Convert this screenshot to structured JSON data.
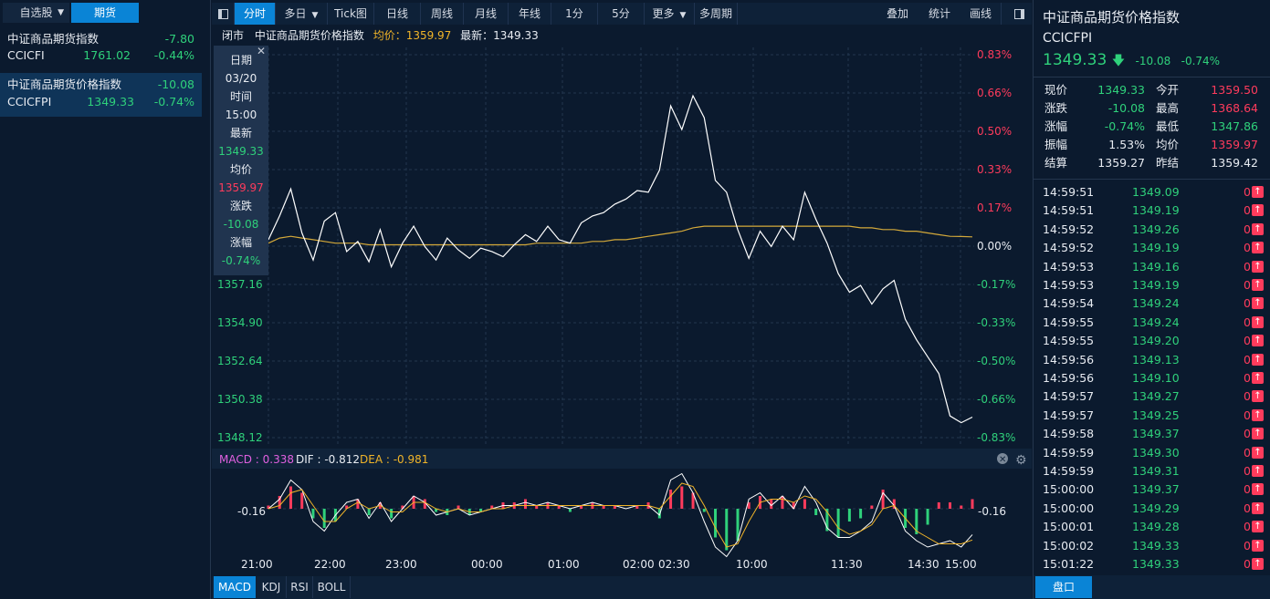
{
  "left": {
    "tab_watchlist": "自选股",
    "tab_futures": "期货",
    "items": [
      {
        "name": "中证商品期货指数",
        "change": "-7.80",
        "code": "CCICFI",
        "price": "1761.02",
        "pct": "-0.44%"
      },
      {
        "name": "中证商品期货价格指数",
        "change": "-10.08",
        "code": "CCICFPI",
        "price": "1349.33",
        "pct": "-0.74%"
      }
    ]
  },
  "toolbar": {
    "buttons": [
      "分时",
      "多日",
      "Tick图",
      "日线",
      "周线",
      "月线",
      "年线",
      "1分",
      "5分",
      "更多",
      "多周期"
    ],
    "right_buttons": [
      "叠加",
      "统计",
      "画线"
    ]
  },
  "header": {
    "status": "闭市",
    "name": "中证商品期货价格指数",
    "avg_label": "均价：1359.97",
    "last_label": "最新：1349.33"
  },
  "tooltip": {
    "rows": [
      {
        "label": "日期",
        "value": "03/20",
        "color": "white"
      },
      {
        "label": "时间",
        "value": "15:00",
        "color": "white"
      },
      {
        "label": "最新",
        "value": "1349.33",
        "color": "down"
      },
      {
        "label": "均价",
        "value": "1359.97",
        "color": "up"
      },
      {
        "label": "涨跌",
        "value": "-10.08",
        "color": "down"
      },
      {
        "label": "涨幅",
        "value": "-0.74%",
        "color": "down"
      }
    ]
  },
  "chart_data": [
    {
      "type": "line",
      "y_left_ticks": [
        "1357.16",
        "1354.90",
        "1352.64",
        "1350.38",
        "1348.12"
      ],
      "y_right_ticks": [
        "0.83%",
        "0.66%",
        "0.50%",
        "0.33%",
        "0.17%",
        "0.00%",
        "-0.17%",
        "-0.33%",
        "-0.50%",
        "-0.66%",
        "-0.83%"
      ],
      "x_ticks": [
        "21:00",
        "22:00",
        "23:00",
        "00:00",
        "01:00",
        "02:00",
        "02:30",
        "10:00",
        "11:30",
        "14:30",
        "15:00"
      ],
      "ylim": [
        1348.12,
        1370.72
      ],
      "series": [
        {
          "name": "最新",
          "values": [
            1359.8,
            1361.2,
            1362.8,
            1360.2,
            1358.6,
            1360.9,
            1361.4,
            1359.1,
            1359.7,
            1358.5,
            1360.4,
            1358.2,
            1359.6,
            1360.6,
            1359.4,
            1358.6,
            1359.9,
            1359.2,
            1358.7,
            1359.3,
            1359.1,
            1358.8,
            1359.5,
            1360.1,
            1359.7,
            1360.6,
            1359.8,
            1359.6,
            1360.8,
            1361.2,
            1361.4,
            1361.9,
            1362.2,
            1362.7,
            1362.6,
            1363.9,
            1367.7,
            1366.3,
            1368.3,
            1367.0,
            1363.3,
            1362.6,
            1360.4,
            1358.7,
            1360.3,
            1359.4,
            1360.6,
            1359.8,
            1362.6,
            1361.0,
            1359.6,
            1357.8,
            1356.7,
            1357.1,
            1356.0,
            1356.9,
            1357.4,
            1355.1,
            1353.9,
            1352.9,
            1351.9,
            1349.4,
            1349.0,
            1349.33
          ]
        },
        {
          "name": "均价",
          "values": [
            1359.6,
            1359.9,
            1360.0,
            1359.9,
            1359.8,
            1359.7,
            1359.6,
            1359.6,
            1359.6,
            1359.5,
            1359.5,
            1359.5,
            1359.5,
            1359.5,
            1359.5,
            1359.5,
            1359.5,
            1359.5,
            1359.5,
            1359.5,
            1359.5,
            1359.5,
            1359.5,
            1359.5,
            1359.6,
            1359.6,
            1359.6,
            1359.6,
            1359.6,
            1359.7,
            1359.7,
            1359.8,
            1359.8,
            1359.9,
            1360.0,
            1360.1,
            1360.2,
            1360.3,
            1360.5,
            1360.6,
            1360.6,
            1360.6,
            1360.6,
            1360.6,
            1360.6,
            1360.6,
            1360.6,
            1360.6,
            1360.6,
            1360.6,
            1360.6,
            1360.6,
            1360.6,
            1360.5,
            1360.5,
            1360.4,
            1360.4,
            1360.3,
            1360.3,
            1360.2,
            1360.1,
            1360.0,
            1359.99,
            1359.97
          ]
        }
      ]
    },
    {
      "type": "bar",
      "title": "MACD : 0.338",
      "dif_label": "DIF : -0.812",
      "dea_label": "DEA : -0.981",
      "y_tick_left": "-0.16",
      "y_tick_right": "-0.16",
      "ylim": [
        -1.6,
        1.2
      ],
      "histogram": [
        0.1,
        0.4,
        0.7,
        0.5,
        -0.3,
        -0.6,
        -0.4,
        0.1,
        0.3,
        -0.2,
        0.2,
        -0.3,
        0.1,
        0.4,
        0.3,
        -0.1,
        -0.2,
        0.1,
        -0.2,
        -0.1,
        0.1,
        0.2,
        0.2,
        0.3,
        0.1,
        0.2,
        0.1,
        -0.1,
        0.1,
        0.2,
        0.1,
        0.1,
        0.0,
        0.1,
        0.2,
        -0.3,
        0.6,
        0.7,
        0.5,
        -0.1,
        -0.9,
        -1.3,
        -1.0,
        0.2,
        0.4,
        0.3,
        0.4,
        0.2,
        0.3,
        -0.2,
        -0.7,
        -0.9,
        -0.4,
        -0.3,
        0.1,
        0.6,
        0.3,
        -0.6,
        -0.8,
        -0.5,
        0.2,
        0.2,
        0.1,
        0.3
      ],
      "dif": [
        0.0,
        0.3,
        0.9,
        0.6,
        -0.4,
        -0.7,
        -0.2,
        0.2,
        0.3,
        -0.3,
        0.2,
        -0.4,
        0.0,
        0.4,
        0.2,
        -0.2,
        -0.1,
        0.0,
        -0.2,
        -0.1,
        0.0,
        0.1,
        0.1,
        0.2,
        0.1,
        0.2,
        0.1,
        0.0,
        0.1,
        0.2,
        0.1,
        0.1,
        0.0,
        0.1,
        0.1,
        -0.2,
        0.9,
        1.1,
        0.5,
        -0.4,
        -1.2,
        -1.5,
        -1.0,
        0.3,
        0.5,
        0.1,
        0.4,
        0.0,
        0.7,
        0.2,
        -0.6,
        -0.9,
        -0.9,
        -0.7,
        -0.4,
        0.5,
        0.1,
        -0.7,
        -1.0,
        -1.2,
        -1.1,
        -1.0,
        -1.2,
        -0.812
      ],
      "dea": [
        0.0,
        0.1,
        0.5,
        0.6,
        0.1,
        -0.4,
        -0.4,
        0.0,
        0.2,
        0.0,
        0.1,
        -0.1,
        -0.1,
        0.2,
        0.2,
        0.0,
        -0.1,
        0.0,
        -0.1,
        -0.1,
        0.0,
        0.0,
        0.1,
        0.1,
        0.1,
        0.1,
        0.1,
        0.1,
        0.1,
        0.1,
        0.1,
        0.1,
        0.1,
        0.1,
        0.1,
        0.0,
        0.4,
        0.8,
        0.7,
        0.1,
        -0.6,
        -1.2,
        -1.1,
        -0.4,
        0.2,
        0.3,
        0.3,
        0.2,
        0.4,
        0.3,
        -0.1,
        -0.6,
        -0.8,
        -0.7,
        -0.5,
        0.0,
        0.1,
        -0.3,
        -0.7,
        -0.9,
        -1.1,
        -1.1,
        -1.1,
        -0.981
      ]
    }
  ],
  "indicator_tabs": [
    "MACD",
    "KDJ",
    "RSI",
    "BOLL"
  ],
  "quote": {
    "title": "中证商品期货价格指数",
    "code": "CCICFPI",
    "price": "1349.33",
    "change": "-10.08",
    "pct": "-0.74%",
    "rows": [
      {
        "l1": "现价",
        "v1": "1349.33",
        "c1": "down",
        "l2": "今开",
        "v2": "1359.50",
        "c2": "up"
      },
      {
        "l1": "涨跌",
        "v1": "-10.08",
        "c1": "down",
        "l2": "最高",
        "v2": "1368.64",
        "c2": "up"
      },
      {
        "l1": "涨幅",
        "v1": "-0.74%",
        "c1": "down",
        "l2": "最低",
        "v2": "1347.86",
        "c2": "down"
      },
      {
        "l1": "振幅",
        "v1": "1.53%",
        "c1": "white",
        "l2": "均价",
        "v2": "1359.97",
        "c2": "up"
      },
      {
        "l1": "结算",
        "v1": "1359.27",
        "c1": "white",
        "l2": "昨结",
        "v2": "1359.42",
        "c2": "white"
      }
    ]
  },
  "ticks": [
    {
      "t": "14:59:51",
      "p": "1349.09",
      "v": "0"
    },
    {
      "t": "14:59:51",
      "p": "1349.19",
      "v": "0"
    },
    {
      "t": "14:59:52",
      "p": "1349.26",
      "v": "0"
    },
    {
      "t": "14:59:52",
      "p": "1349.19",
      "v": "0"
    },
    {
      "t": "14:59:53",
      "p": "1349.16",
      "v": "0"
    },
    {
      "t": "14:59:53",
      "p": "1349.19",
      "v": "0"
    },
    {
      "t": "14:59:54",
      "p": "1349.24",
      "v": "0"
    },
    {
      "t": "14:59:55",
      "p": "1349.24",
      "v": "0"
    },
    {
      "t": "14:59:55",
      "p": "1349.20",
      "v": "0"
    },
    {
      "t": "14:59:56",
      "p": "1349.13",
      "v": "0"
    },
    {
      "t": "14:59:56",
      "p": "1349.10",
      "v": "0"
    },
    {
      "t": "14:59:57",
      "p": "1349.27",
      "v": "0"
    },
    {
      "t": "14:59:57",
      "p": "1349.25",
      "v": "0"
    },
    {
      "t": "14:59:58",
      "p": "1349.37",
      "v": "0"
    },
    {
      "t": "14:59:59",
      "p": "1349.30",
      "v": "0"
    },
    {
      "t": "14:59:59",
      "p": "1349.31",
      "v": "0"
    },
    {
      "t": "15:00:00",
      "p": "1349.37",
      "v": "0"
    },
    {
      "t": "15:00:00",
      "p": "1349.29",
      "v": "0"
    },
    {
      "t": "15:00:01",
      "p": "1349.28",
      "v": "0"
    },
    {
      "t": "15:00:02",
      "p": "1349.33",
      "v": "0"
    },
    {
      "t": "15:01:22",
      "p": "1349.33",
      "v": "0"
    }
  ],
  "footer_tab": "盘口",
  "colors": {
    "up": "#ff3b5c",
    "down": "#2fd17b",
    "avg_line": "#d4a93a",
    "price_line": "#ffffff",
    "accent": "#0a84d6"
  }
}
